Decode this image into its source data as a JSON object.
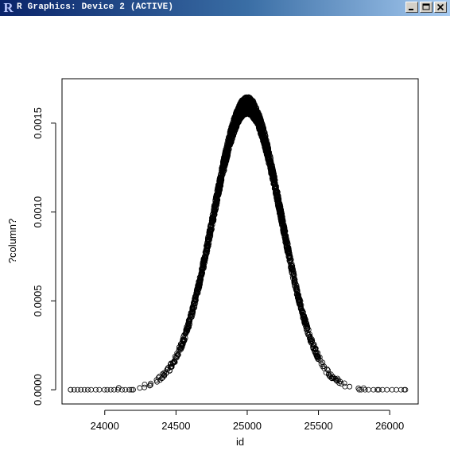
{
  "window": {
    "title": "R Graphics: Device 2 (ACTIVE)",
    "app_icon": "R",
    "icon_name": "r-logo-icon",
    "titlebar_color": "#0a246a"
  },
  "chart_data": {
    "type": "scatter",
    "title": "",
    "xlabel": "id",
    "ylabel": "?column?",
    "xlim": [
      23700,
      26200
    ],
    "ylim": [
      -8e-05,
      0.00175
    ],
    "x_ticks": [
      {
        "value": 24000,
        "label": "24000"
      },
      {
        "value": 24500,
        "label": "24500"
      },
      {
        "value": 25000,
        "label": "25000"
      },
      {
        "value": 25500,
        "label": "25500"
      },
      {
        "value": 26000,
        "label": "26000"
      }
    ],
    "y_ticks": [
      {
        "value": 0,
        "label": "0.0000"
      },
      {
        "value": 0.0005,
        "label": "0.0005"
      },
      {
        "value": 0.001,
        "label": "0.0010"
      },
      {
        "value": 0.0015,
        "label": "0.0015"
      }
    ],
    "grid": false,
    "marker": "open-circle",
    "series": [
      {
        "distribution": "normal-density",
        "mean": 25000,
        "sd": 240,
        "x_min": 23760,
        "x_max": 26110,
        "peak_y": 0.0016,
        "n_points": 2300
      }
    ]
  }
}
